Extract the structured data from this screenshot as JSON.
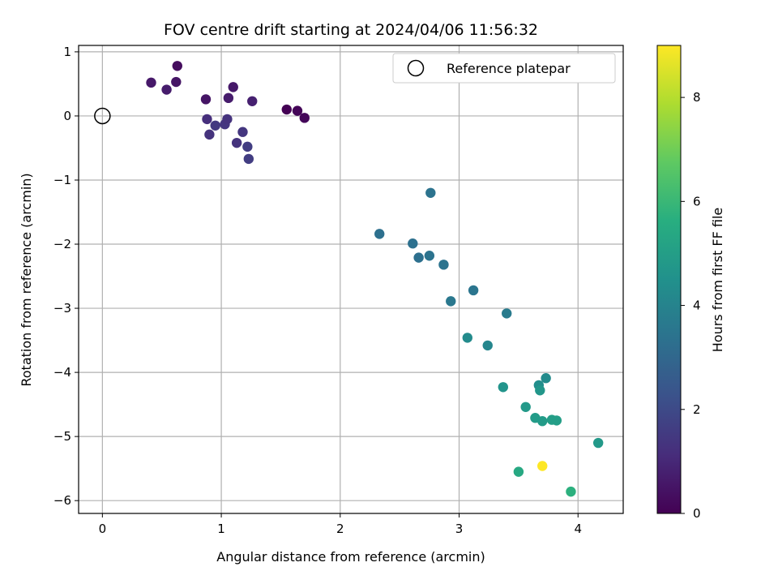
{
  "chart_data": {
    "type": "scatter",
    "title": "FOV centre drift starting at 2024/04/06 11:56:32",
    "xlabel": "Angular distance from reference (arcmin)",
    "ylabel": "Rotation from reference (arcmin)",
    "xlim": [
      -0.2,
      4.38
    ],
    "ylim": [
      -6.2,
      1.1
    ],
    "xticks": [
      0,
      1,
      2,
      3,
      4
    ],
    "yticks": [
      1,
      0,
      -1,
      -2,
      -3,
      -4,
      -5,
      -6
    ],
    "grid": true,
    "legend": {
      "position": "top-right",
      "entries": [
        "Reference platepar"
      ]
    },
    "reference_point": {
      "x": 0,
      "y": 0
    },
    "colorbar": {
      "label": "Hours from first FF file",
      "min": 0,
      "max": 9,
      "ticks": [
        0,
        2,
        4,
        6,
        8
      ],
      "colormap": "viridis"
    },
    "points": [
      {
        "x": 1.55,
        "y": 0.1,
        "c": 0.0
      },
      {
        "x": 1.64,
        "y": 0.08,
        "c": 0.1
      },
      {
        "x": 1.7,
        "y": -0.03,
        "c": 0.15
      },
      {
        "x": 0.63,
        "y": 0.78,
        "c": 0.3
      },
      {
        "x": 0.41,
        "y": 0.52,
        "c": 0.6
      },
      {
        "x": 0.62,
        "y": 0.53,
        "c": 0.5
      },
      {
        "x": 0.54,
        "y": 0.41,
        "c": 0.7
      },
      {
        "x": 0.87,
        "y": 0.26,
        "c": 0.5
      },
      {
        "x": 1.1,
        "y": 0.45,
        "c": 0.6
      },
      {
        "x": 1.06,
        "y": 0.28,
        "c": 0.7
      },
      {
        "x": 1.26,
        "y": 0.23,
        "c": 0.8
      },
      {
        "x": 0.88,
        "y": -0.05,
        "c": 1.2
      },
      {
        "x": 0.95,
        "y": -0.15,
        "c": 1.5
      },
      {
        "x": 1.03,
        "y": -0.13,
        "c": 1.4
      },
      {
        "x": 1.05,
        "y": -0.05,
        "c": 1.3
      },
      {
        "x": 0.9,
        "y": -0.29,
        "c": 1.3
      },
      {
        "x": 1.18,
        "y": -0.25,
        "c": 1.4
      },
      {
        "x": 1.13,
        "y": -0.42,
        "c": 1.3
      },
      {
        "x": 1.22,
        "y": -0.48,
        "c": 1.6
      },
      {
        "x": 1.23,
        "y": -0.67,
        "c": 1.6
      },
      {
        "x": 2.76,
        "y": -1.2,
        "c": 3.4
      },
      {
        "x": 2.33,
        "y": -1.84,
        "c": 3.3
      },
      {
        "x": 2.61,
        "y": -1.99,
        "c": 3.3
      },
      {
        "x": 2.66,
        "y": -2.21,
        "c": 3.3
      },
      {
        "x": 2.75,
        "y": -2.18,
        "c": 3.4
      },
      {
        "x": 2.87,
        "y": -2.32,
        "c": 3.4
      },
      {
        "x": 3.12,
        "y": -2.72,
        "c": 3.5
      },
      {
        "x": 2.93,
        "y": -2.89,
        "c": 3.6
      },
      {
        "x": 3.4,
        "y": -3.08,
        "c": 3.7
      },
      {
        "x": 3.07,
        "y": -3.46,
        "c": 4.3
      },
      {
        "x": 3.24,
        "y": -3.58,
        "c": 4.1
      },
      {
        "x": 3.37,
        "y": -4.23,
        "c": 4.6
      },
      {
        "x": 3.67,
        "y": -4.2,
        "c": 4.4
      },
      {
        "x": 3.73,
        "y": -4.09,
        "c": 4.3
      },
      {
        "x": 3.68,
        "y": -4.28,
        "c": 4.7
      },
      {
        "x": 3.56,
        "y": -4.54,
        "c": 4.8
      },
      {
        "x": 3.64,
        "y": -4.71,
        "c": 4.9
      },
      {
        "x": 3.7,
        "y": -4.76,
        "c": 4.9
      },
      {
        "x": 3.78,
        "y": -4.74,
        "c": 5.0
      },
      {
        "x": 3.82,
        "y": -4.75,
        "c": 5.0
      },
      {
        "x": 4.17,
        "y": -5.1,
        "c": 4.8
      },
      {
        "x": 3.5,
        "y": -5.55,
        "c": 5.4
      },
      {
        "x": 3.7,
        "y": -5.46,
        "c": 9.0
      },
      {
        "x": 3.94,
        "y": -5.86,
        "c": 5.7
      }
    ]
  }
}
